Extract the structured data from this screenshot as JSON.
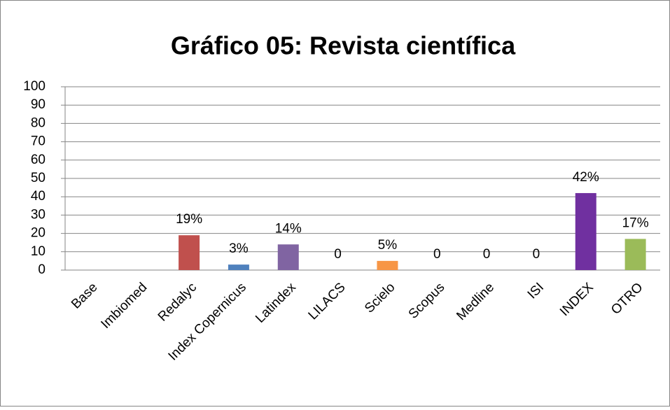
{
  "chart_data": {
    "type": "bar",
    "title": "Gráfico 05: Revista científica",
    "categories": [
      "Base",
      "Imbiomed",
      "Redalyc",
      "Index Copernicus",
      "Latindex",
      "LILACS",
      "Scielo",
      "Scopus",
      "Medline",
      "ISI",
      "INDEX",
      "OTRO"
    ],
    "values": [
      null,
      null,
      19,
      3,
      14,
      0,
      5,
      0,
      0,
      0,
      42,
      17
    ],
    "value_labels": [
      null,
      null,
      "19%",
      "3%",
      "14%",
      "0",
      "5%",
      "0",
      "0",
      "0",
      "42%",
      "17%"
    ],
    "colors": [
      "#4f81bd",
      "#4f81bd",
      "#c0504d",
      "#4f81bd",
      "#8064a2",
      "#4bacc6",
      "#f79646",
      "#4f81bd",
      "#c0504d",
      "#9bbb59",
      "#7030a0",
      "#9bbb59"
    ],
    "ylim": [
      0,
      100
    ],
    "yticks": [
      0,
      10,
      20,
      30,
      40,
      50,
      60,
      70,
      80,
      90,
      100
    ],
    "grid": true
  }
}
